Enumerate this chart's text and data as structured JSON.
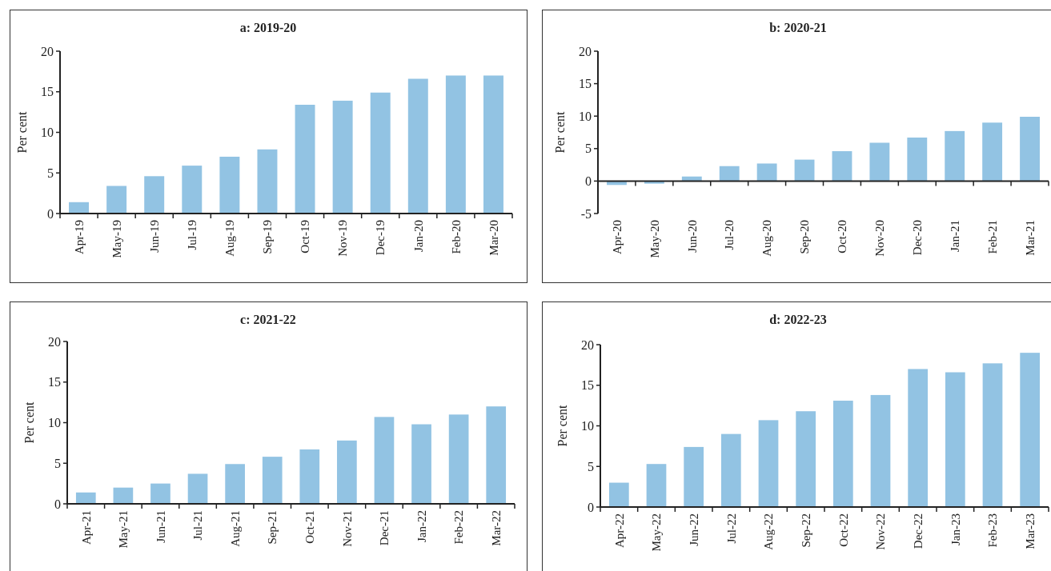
{
  "chart_data": [
    {
      "type": "bar",
      "title": "a: 2019-20",
      "ylabel": "Per cent",
      "categories": [
        "Apr-19",
        "May-19",
        "Jun-19",
        "Jul-19",
        "Aug-19",
        "Sep-19",
        "Oct-19",
        "Nov-19",
        "Dec-19",
        "Jan-20",
        "Feb-20",
        "Mar-20"
      ],
      "values": [
        1.4,
        3.4,
        4.6,
        5.9,
        7.0,
        7.9,
        13.4,
        13.9,
        14.9,
        16.6,
        17.0,
        17.0
      ],
      "color": "#92c3e3",
      "ylim": [
        0,
        20
      ],
      "yticks": [
        0,
        5,
        10,
        15,
        20
      ]
    },
    {
      "type": "bar",
      "title": "b: 2020-21",
      "ylabel": "Per cent",
      "categories": [
        "Apr-20",
        "May-20",
        "Jun-20",
        "Jul-20",
        "Aug-20",
        "Sep-20",
        "Oct-20",
        "Nov-20",
        "Dec-20",
        "Jan-21",
        "Feb-21",
        "Mar-21"
      ],
      "values": [
        -0.6,
        -0.4,
        0.7,
        2.3,
        2.7,
        3.3,
        4.6,
        5.9,
        6.7,
        7.7,
        9.0,
        9.9
      ],
      "color": "#92c3e3",
      "ylim": [
        -5,
        20
      ],
      "yticks": [
        -5,
        0,
        5,
        10,
        15,
        20
      ]
    },
    {
      "type": "bar",
      "title": "c: 2021-22",
      "ylabel": "Per cent",
      "categories": [
        "Apr-21",
        "May-21",
        "Jun-21",
        "Jul-21",
        "Aug-21",
        "Sep-21",
        "Oct-21",
        "Nov-21",
        "Dec-21",
        "Jan-22",
        "Feb-22",
        "Mar-22"
      ],
      "values": [
        1.4,
        2.0,
        2.5,
        3.7,
        4.9,
        5.8,
        6.7,
        7.8,
        10.7,
        9.8,
        11.0,
        12.0
      ],
      "color": "#92c3e3",
      "ylim": [
        0,
        20
      ],
      "yticks": [
        0,
        5,
        10,
        15,
        20
      ]
    },
    {
      "type": "bar",
      "title": "d: 2022-23",
      "ylabel": "Per cent",
      "categories": [
        "Apr-22",
        "May-22",
        "Jun-22",
        "Jul-22",
        "Aug-22",
        "Sep-22",
        "Oct-22",
        "Nov-22",
        "Dec-22",
        "Jan-23",
        "Feb-23",
        "Mar-23"
      ],
      "values": [
        3.0,
        5.3,
        7.4,
        9.0,
        10.7,
        11.8,
        13.1,
        13.8,
        17.0,
        16.6,
        17.7,
        19.0
      ],
      "color": "#92c3e3",
      "ylim": [
        0,
        20
      ],
      "yticks": [
        0,
        5,
        10,
        15,
        20
      ]
    }
  ]
}
